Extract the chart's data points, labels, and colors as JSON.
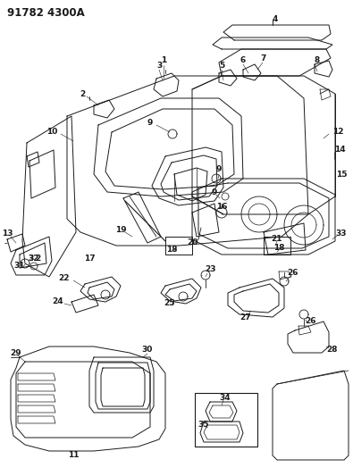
{
  "title": "91782 4300A",
  "title_fontsize": 8.5,
  "bg_color": "#ffffff",
  "line_color": "#1a1a1a",
  "fig_width": 3.95,
  "fig_height": 5.33,
  "dpi": 100
}
